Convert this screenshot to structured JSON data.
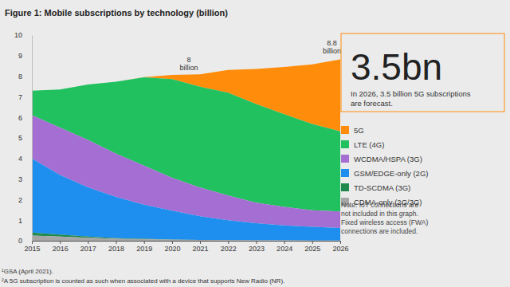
{
  "chart_data": {
    "type": "area",
    "stacked": true,
    "title": "Figure 1: Mobile subscriptions by technology (billion)",
    "x": [
      2015,
      2016,
      2017,
      2018,
      2019,
      2020,
      2021,
      2022,
      2023,
      2024,
      2025,
      2026
    ],
    "xlim": [
      2015,
      2026
    ],
    "xticks": [
      2015,
      2016,
      2017,
      2018,
      2019,
      2020,
      2021,
      2022,
      2023,
      2024,
      2025,
      2026
    ],
    "ylim": [
      0,
      10
    ],
    "yticks": [
      0,
      1,
      2,
      3,
      4,
      5,
      6,
      7,
      8,
      9,
      10
    ],
    "grid": false,
    "legend": "right",
    "series": [
      {
        "name": "5G",
        "color": "#ff8c0a",
        "values": [
          0,
          0,
          0,
          0,
          0.01,
          0.2,
          0.6,
          1.1,
          1.7,
          2.3,
          2.9,
          3.5
        ]
      },
      {
        "name": "LTE (4G)",
        "color": "#21c15f",
        "values": [
          1.2,
          1.85,
          2.7,
          3.5,
          4.3,
          4.8,
          4.9,
          5.0,
          4.8,
          4.5,
          4.2,
          3.9
        ]
      },
      {
        "name": "WCDMA/HSPA (3G)",
        "color": "#a56ed3",
        "values": [
          2.1,
          2.3,
          2.3,
          2.1,
          1.9,
          1.6,
          1.4,
          1.2,
          1.0,
          0.9,
          0.8,
          0.8
        ]
      },
      {
        "name": "GSM/EDGE-only (2G)",
        "color": "#1e8fef",
        "values": [
          3.6,
          2.9,
          2.4,
          2.0,
          1.65,
          1.4,
          1.15,
          0.97,
          0.83,
          0.73,
          0.67,
          0.61
        ]
      },
      {
        "name": "TD-SCDMA (3G)",
        "color": "#1f8a4c",
        "values": [
          0.15,
          0.1,
          0.05,
          0.03,
          0.02,
          0.01,
          0,
          0,
          0,
          0,
          0,
          0
        ]
      },
      {
        "name": "CDMA-only (2G/3G)",
        "color": "#a6a6a6",
        "values": [
          0.25,
          0.2,
          0.15,
          0.1,
          0.08,
          0.05,
          0.04,
          0.03,
          0.02,
          0.02,
          0.01,
          0.01
        ]
      }
    ],
    "annotations": [
      {
        "text": [
          "8",
          "billion"
        ],
        "x": 2020.6,
        "y": 8
      },
      {
        "text": [
          "8.8",
          "billion"
        ],
        "x": 2025.7,
        "y": 8.8
      }
    ],
    "callout": {
      "headline": "3.5bn",
      "text": [
        "In 2026, 3.5 billion 5G subscriptions",
        "are forecast."
      ]
    },
    "note": [
      "Note: IoT connections are",
      "not included in this graph.",
      "Fixed wireless access (FWA)",
      "connections are included."
    ],
    "footnotes": [
      "¹GSA (April 2021).",
      "²A 5G subscription is counted as such when associated with a device that supports New Radio (NR)."
    ]
  }
}
